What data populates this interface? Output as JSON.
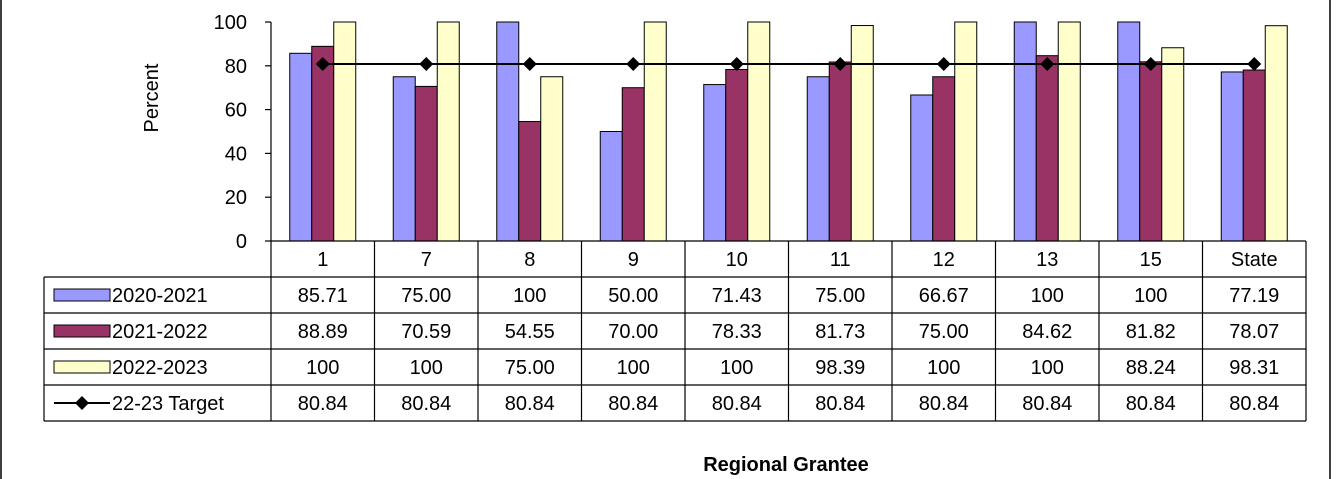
{
  "chart_data": {
    "type": "bar",
    "ylabel": "Percent",
    "xlabel": "Regional Grantee",
    "ylim": [
      0,
      100
    ],
    "yticks": [
      0,
      20,
      40,
      60,
      80,
      100
    ],
    "categories": [
      "1",
      "7",
      "8",
      "9",
      "10",
      "11",
      "12",
      "13",
      "15",
      "State"
    ],
    "series": [
      {
        "name": "2020-2021",
        "type": "bar",
        "color": "#9999ff",
        "values": [
          85.71,
          75.0,
          100,
          50.0,
          71.43,
          75.0,
          66.67,
          100,
          100,
          77.19
        ],
        "labels": [
          "85.71",
          "75.00",
          "100",
          "50.00",
          "71.43",
          "75.00",
          "66.67",
          "100",
          "100",
          "77.19"
        ]
      },
      {
        "name": "2021-2022",
        "type": "bar",
        "color": "#993366",
        "values": [
          88.89,
          70.59,
          54.55,
          70.0,
          78.33,
          81.73,
          75.0,
          84.62,
          81.82,
          78.07
        ],
        "labels": [
          "88.89",
          "70.59",
          "54.55",
          "70.00",
          "78.33",
          "81.73",
          "75.00",
          "84.62",
          "81.82",
          "78.07"
        ]
      },
      {
        "name": "2022-2023",
        "type": "bar",
        "color": "#ffffcc",
        "values": [
          100,
          100,
          75.0,
          100,
          100,
          98.39,
          100,
          100,
          88.24,
          98.31
        ],
        "labels": [
          "100",
          "100",
          "75.00",
          "100",
          "100",
          "98.39",
          "100",
          "100",
          "88.24",
          "98.31"
        ]
      },
      {
        "name": "22-23 Target",
        "type": "line",
        "color": "#000000",
        "values": [
          80.84,
          80.84,
          80.84,
          80.84,
          80.84,
          80.84,
          80.84,
          80.84,
          80.84,
          80.84
        ],
        "labels": [
          "80.84",
          "80.84",
          "80.84",
          "80.84",
          "80.84",
          "80.84",
          "80.84",
          "80.84",
          "80.84",
          "80.84"
        ]
      }
    ]
  }
}
